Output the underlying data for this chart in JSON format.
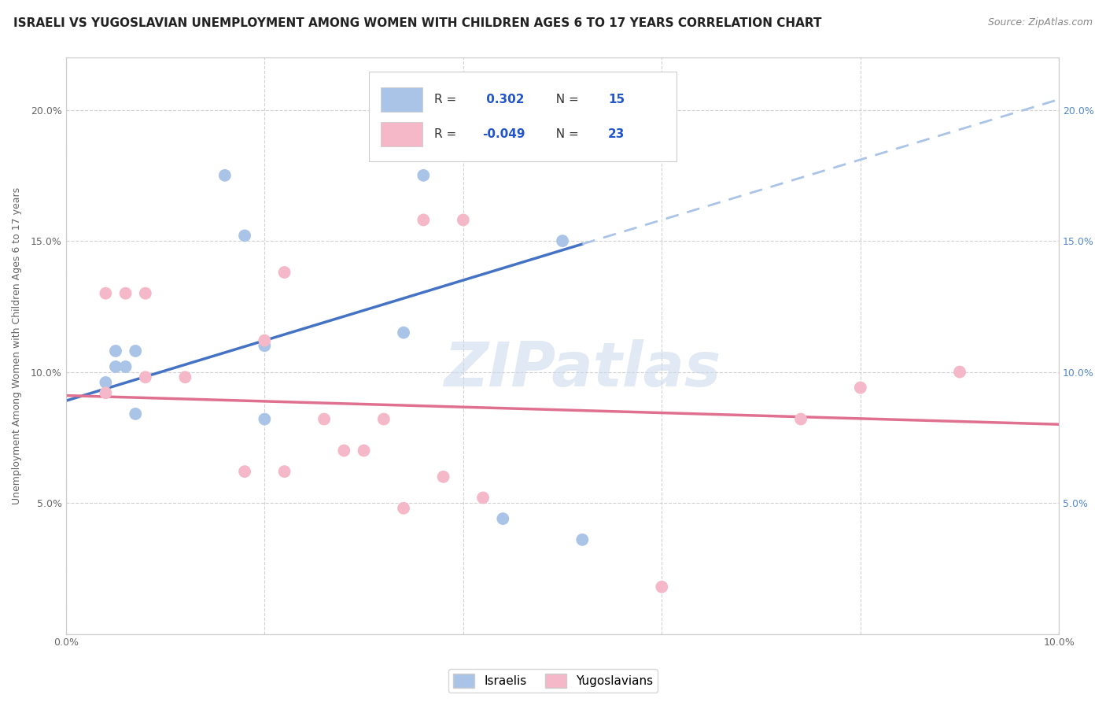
{
  "title": "ISRAELI VS YUGOSLAVIAN UNEMPLOYMENT AMONG WOMEN WITH CHILDREN AGES 6 TO 17 YEARS CORRELATION CHART",
  "source": "Source: ZipAtlas.com",
  "ylabel": "Unemployment Among Women with Children Ages 6 to 17 years",
  "xlim": [
    0.0,
    0.1
  ],
  "ylim": [
    0.0,
    0.22
  ],
  "x_ticks": [
    0.0,
    0.02,
    0.04,
    0.06,
    0.08,
    0.1
  ],
  "y_ticks": [
    0.0,
    0.05,
    0.1,
    0.15,
    0.2
  ],
  "watermark": "ZIPatlas",
  "background_color": "#ffffff",
  "plot_bg_color": "#ffffff",
  "grid_color": "#cccccc",
  "israeli_color": "#aac4e8",
  "yugoslavian_color": "#f4b8c8",
  "israeli_R": 0.302,
  "israeli_N": 15,
  "yugoslavian_R": -0.049,
  "yugoslavian_N": 23,
  "israeli_line_color": "#4472c4",
  "yugoslavian_line_color": "#e07090",
  "trendline_ext_color": "#aac4e8",
  "israeli_scatter_x": [
    0.004,
    0.005,
    0.005,
    0.006,
    0.007,
    0.007,
    0.016,
    0.018,
    0.02,
    0.02,
    0.034,
    0.036,
    0.044,
    0.05,
    0.052
  ],
  "israeli_scatter_y": [
    0.096,
    0.102,
    0.108,
    0.102,
    0.084,
    0.108,
    0.175,
    0.152,
    0.11,
    0.082,
    0.115,
    0.175,
    0.044,
    0.15,
    0.036
  ],
  "yugoslavian_scatter_x": [
    0.004,
    0.004,
    0.006,
    0.008,
    0.008,
    0.012,
    0.018,
    0.02,
    0.022,
    0.022,
    0.026,
    0.028,
    0.03,
    0.032,
    0.034,
    0.036,
    0.038,
    0.04,
    0.042,
    0.06,
    0.074,
    0.08,
    0.09
  ],
  "yugoslavian_scatter_y": [
    0.092,
    0.13,
    0.13,
    0.13,
    0.098,
    0.098,
    0.062,
    0.112,
    0.062,
    0.138,
    0.082,
    0.07,
    0.07,
    0.082,
    0.048,
    0.158,
    0.06,
    0.158,
    0.052,
    0.018,
    0.082,
    0.094,
    0.1
  ],
  "title_fontsize": 11,
  "source_fontsize": 9,
  "legend_fontsize": 11,
  "axis_fontsize": 9,
  "marker_size": 130,
  "israeli_line_intercept": 0.089,
  "israeli_line_slope": 1.15,
  "yugoslavian_line_intercept": 0.091,
  "yugoslavian_line_slope": -0.11
}
